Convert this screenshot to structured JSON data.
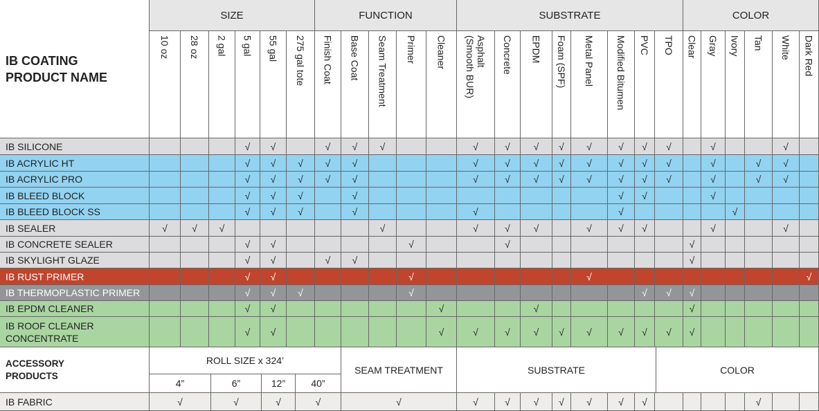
{
  "header": {
    "name": "IB COATING PRODUCT NAME",
    "groups": [
      {
        "label": "SIZE",
        "columns": [
          "10 oz",
          "28 oz",
          "2 gal",
          "5 gal",
          "55 gal",
          "275 gal tote"
        ]
      },
      {
        "label": "FUNCTION",
        "columns": [
          "Finish Coat",
          "Base Coat",
          "Seam Treatment",
          "Primer",
          "Cleaner"
        ]
      },
      {
        "label": "SUBSTRATE",
        "columns": [
          "Asphalt (Smooth BUR)",
          "Concrete",
          "EPDM",
          "Foam (SPF)",
          "Metal Panel",
          "Modified Bitumen",
          "PVC",
          "TPO"
        ]
      },
      {
        "label": "COLOR",
        "columns": [
          "Clear",
          "Gray",
          "Ivory",
          "Tan",
          "White",
          "Dark Red"
        ]
      }
    ]
  },
  "products": [
    {
      "name": "IB SILICONE",
      "color": "#dcdcde",
      "cells": [
        null,
        null,
        null,
        "√",
        "√",
        null,
        "√",
        "√",
        "√",
        null,
        null,
        "√",
        "√",
        "√",
        "√",
        "√",
        "√",
        "√",
        "√",
        null,
        "√",
        null,
        null,
        "√",
        null
      ]
    },
    {
      "name": "IB ACRYLIC HT",
      "color": "#92d3f1",
      "cells": [
        null,
        null,
        null,
        "√",
        "√",
        "√",
        "√",
        "√",
        null,
        null,
        null,
        "√",
        "√",
        "√",
        "√",
        "√",
        "√",
        "√",
        "√",
        null,
        "√",
        null,
        "√",
        "√",
        null
      ]
    },
    {
      "name": "IB ACRYLIC PRO",
      "color": "#92d3f1",
      "cells": [
        null,
        null,
        null,
        "√",
        "√",
        "√",
        "√",
        "√",
        null,
        null,
        null,
        "√",
        "√",
        "√",
        "√",
        "√",
        "√",
        "√",
        "√",
        null,
        "√",
        null,
        "√",
        "√",
        null
      ]
    },
    {
      "name": "IB BLEED BLOCK",
      "color": "#92d3f1",
      "cells": [
        null,
        null,
        null,
        "√",
        "√",
        "√",
        null,
        "√",
        null,
        null,
        null,
        null,
        null,
        null,
        null,
        null,
        "√",
        "√",
        null,
        null,
        "√",
        null,
        null,
        null,
        null
      ]
    },
    {
      "name": "IB BLEED BLOCK SS",
      "color": "#92d3f1",
      "cells": [
        null,
        null,
        null,
        "√",
        "√",
        "√",
        null,
        "√",
        null,
        null,
        null,
        "√",
        null,
        null,
        null,
        null,
        "√",
        null,
        null,
        null,
        null,
        "√",
        null,
        null,
        null
      ]
    },
    {
      "name": "IB SEALER",
      "color": "#dcdcde",
      "cells": [
        "√",
        "√",
        "√",
        null,
        null,
        null,
        null,
        null,
        "√",
        null,
        null,
        "√",
        "√",
        "√",
        null,
        "√",
        "√",
        "√",
        null,
        null,
        "√",
        null,
        null,
        "√",
        null
      ]
    },
    {
      "name": "IB CONCRETE SEALER",
      "color": "#dcdcde",
      "cells": [
        null,
        null,
        null,
        "√",
        "√",
        null,
        null,
        null,
        null,
        "√",
        null,
        null,
        "√",
        null,
        null,
        null,
        null,
        null,
        null,
        "√",
        null,
        null,
        null,
        null,
        null
      ]
    },
    {
      "name": "IB SKYLIGHT GLAZE",
      "color": "#dcdcde",
      "cells": [
        null,
        null,
        null,
        "√",
        "√",
        null,
        "√",
        "√",
        null,
        null,
        null,
        null,
        null,
        null,
        null,
        null,
        null,
        null,
        null,
        "√",
        null,
        null,
        null,
        null,
        null
      ]
    },
    {
      "name": "IB RUST PRIMER",
      "color": "#c1442d",
      "cells": [
        null,
        null,
        null,
        "√",
        "√",
        null,
        null,
        null,
        null,
        "√",
        null,
        null,
        null,
        null,
        null,
        "√",
        null,
        null,
        null,
        null,
        null,
        null,
        null,
        null,
        "√"
      ]
    },
    {
      "name": "IB THERMOPLASTIC PRIMER",
      "color": "#939598",
      "cells": [
        null,
        null,
        null,
        "√",
        "√",
        "√",
        null,
        null,
        null,
        "√",
        null,
        null,
        null,
        null,
        null,
        null,
        null,
        "√",
        "√",
        "√",
        null,
        null,
        null,
        null,
        null
      ]
    },
    {
      "name": "IB EPDM CLEANER",
      "color": "#a9d5a1",
      "cells": [
        null,
        null,
        null,
        "√",
        "√",
        null,
        null,
        null,
        null,
        null,
        "√",
        null,
        null,
        "√",
        null,
        null,
        null,
        null,
        null,
        "√",
        null,
        null,
        null,
        null,
        null
      ]
    },
    {
      "name": "IB ROOF CLEANER CONCENTRATE",
      "color": "#a9d5a1",
      "cells": [
        null,
        null,
        null,
        "√",
        "√",
        null,
        null,
        null,
        null,
        null,
        "√",
        "√",
        "√",
        "√",
        "√",
        "√",
        "√",
        "√",
        "√",
        "√",
        null,
        null,
        null,
        null,
        null
      ]
    }
  ],
  "accessories": {
    "title": "ACCESSORY PRODUCTS",
    "roll_size": {
      "label": "ROLL SIZE x 324’",
      "sizes": [
        "4”",
        "6”",
        "12”",
        "40”"
      ]
    },
    "seam": "SEAM TREATMENT",
    "substrate": "SUBSTRATE",
    "color": "COLOR",
    "rows": [
      {
        "name": "IB FABRIC",
        "roll": [
          "√",
          "√",
          "√",
          "√"
        ],
        "seam": "√",
        "substrate": [
          "√",
          "√",
          "√",
          "√",
          "√",
          "√",
          "√",
          null
        ],
        "colors": [
          null,
          null,
          null,
          "√",
          null,
          null
        ]
      }
    ]
  }
}
